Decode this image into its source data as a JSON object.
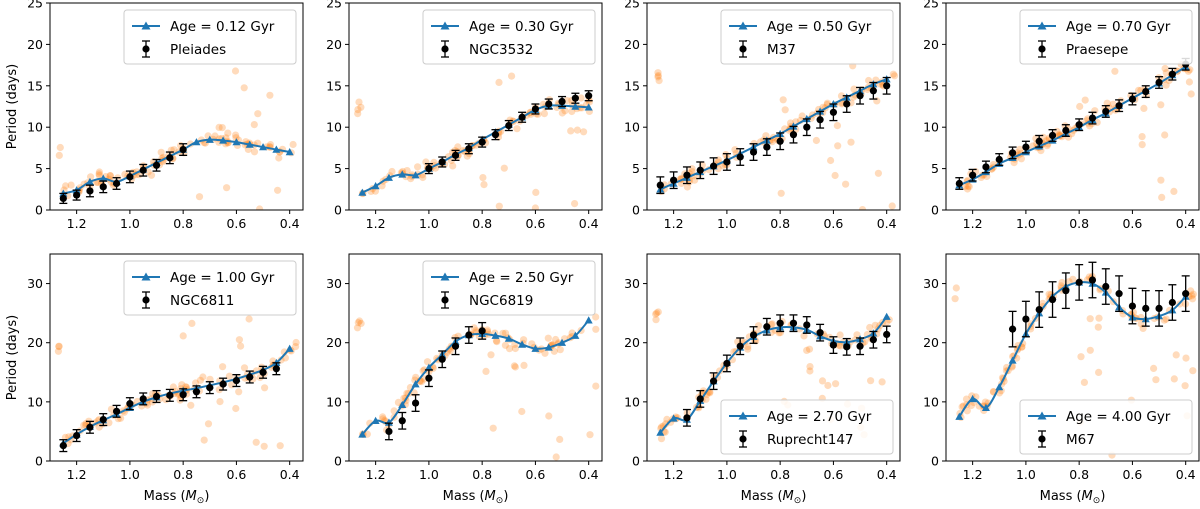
{
  "figure": {
    "xlabel_prefix": "Mass (",
    "xlabel_symbol": "M",
    "xlabel_sub": "⊙",
    "xlabel_suffix": ")",
    "ylabel": "Period (days)",
    "colors": {
      "model": "#1f77b4",
      "observed": "#000000",
      "scatter": "#ff7f0e"
    }
  },
  "chart_data": [
    {
      "type": "line",
      "title": "",
      "xlim": [
        1.3,
        0.35
      ],
      "ylim": [
        0,
        25
      ],
      "xticks": [
        1.2,
        1.0,
        0.8,
        0.6,
        0.4
      ],
      "yticks": [
        0,
        5,
        10,
        15,
        20,
        25
      ],
      "model_label": "Age =  0.12 Gyr",
      "cluster_label": "Pleiades",
      "legend_loc": "upper-right",
      "model": {
        "x": [
          1.25,
          1.2,
          1.15,
          1.1,
          1.05,
          1.0,
          0.95,
          0.9,
          0.85,
          0.8,
          0.75,
          0.7,
          0.65,
          0.6,
          0.55,
          0.5,
          0.45,
          0.4
        ],
        "y": [
          2.0,
          2.4,
          3.4,
          3.8,
          3.4,
          4.1,
          4.9,
          5.7,
          6.5,
          7.3,
          8.2,
          8.5,
          8.4,
          8.2,
          7.9,
          7.6,
          7.3,
          7.0
        ]
      },
      "observed": {
        "x": [
          1.25,
          1.2,
          1.15,
          1.1,
          1.05,
          1.0,
          0.95,
          0.9,
          0.85,
          0.8
        ],
        "y": [
          1.4,
          1.8,
          2.3,
          2.8,
          3.2,
          4.0,
          4.8,
          5.4,
          6.3,
          7.3
        ],
        "err": [
          0.6,
          0.6,
          0.7,
          0.7,
          0.7,
          0.7,
          0.7,
          0.7,
          0.7,
          0.7
        ]
      }
    },
    {
      "type": "line",
      "title": "",
      "xlim": [
        1.3,
        0.35
      ],
      "ylim": [
        0,
        25
      ],
      "xticks": [
        1.2,
        1.0,
        0.8,
        0.6,
        0.4
      ],
      "yticks": [
        0,
        5,
        10,
        15,
        20,
        25
      ],
      "model_label": "Age =  0.30 Gyr",
      "cluster_label": "NGC3532",
      "legend_loc": "upper-right",
      "model": {
        "x": [
          1.25,
          1.2,
          1.15,
          1.1,
          1.05,
          1.0,
          0.95,
          0.9,
          0.85,
          0.8,
          0.75,
          0.7,
          0.65,
          0.6,
          0.55,
          0.5,
          0.45,
          0.4
        ],
        "y": [
          2.1,
          2.9,
          3.9,
          4.3,
          4.2,
          5.0,
          5.8,
          6.7,
          7.5,
          8.5,
          9.4,
          10.3,
          11.2,
          12.1,
          12.6,
          12.6,
          12.5,
          12.4
        ]
      },
      "observed": {
        "x": [
          1.0,
          0.95,
          0.9,
          0.85,
          0.8,
          0.75,
          0.7,
          0.65,
          0.6,
          0.55,
          0.5,
          0.45,
          0.4
        ],
        "y": [
          5.0,
          5.8,
          6.6,
          7.4,
          8.2,
          9.1,
          10.2,
          11.2,
          12.2,
          12.8,
          13.1,
          13.5,
          13.8
        ],
        "err": [
          0.6,
          0.6,
          0.6,
          0.6,
          0.6,
          0.6,
          0.6,
          0.6,
          0.6,
          0.6,
          0.6,
          0.6,
          0.6
        ]
      }
    },
    {
      "type": "line",
      "title": "",
      "xlim": [
        1.3,
        0.35
      ],
      "ylim": [
        0,
        25
      ],
      "xticks": [
        1.2,
        1.0,
        0.8,
        0.6,
        0.4
      ],
      "yticks": [
        0,
        5,
        10,
        15,
        20,
        25
      ],
      "model_label": "Age =  0.50 Gyr",
      "cluster_label": "M37",
      "legend_loc": "upper-right",
      "model": {
        "x": [
          1.25,
          1.2,
          1.15,
          1.1,
          1.05,
          1.0,
          0.95,
          0.9,
          0.85,
          0.8,
          0.75,
          0.7,
          0.65,
          0.6,
          0.55,
          0.5,
          0.45,
          0.4
        ],
        "y": [
          2.5,
          3.2,
          3.9,
          4.6,
          5.3,
          6.0,
          6.8,
          7.6,
          8.4,
          9.2,
          10.1,
          11.0,
          11.9,
          12.8,
          13.6,
          14.4,
          15.2,
          15.8
        ]
      },
      "observed": {
        "x": [
          1.25,
          1.2,
          1.15,
          1.1,
          1.05,
          1.0,
          0.95,
          0.9,
          0.85,
          0.8,
          0.75,
          0.7,
          0.65,
          0.6,
          0.55,
          0.5,
          0.45,
          0.4
        ],
        "y": [
          3.0,
          3.6,
          4.2,
          4.8,
          5.3,
          5.8,
          6.4,
          7.0,
          7.6,
          8.3,
          9.1,
          10.0,
          10.9,
          11.8,
          12.8,
          13.8,
          14.4,
          15.0
        ],
        "err": [
          1.0,
          1.0,
          1.0,
          1.0,
          1.0,
          1.0,
          1.0,
          1.0,
          1.0,
          1.0,
          1.0,
          1.0,
          1.0,
          1.0,
          1.0,
          1.0,
          1.0,
          1.0
        ]
      }
    },
    {
      "type": "line",
      "title": "",
      "xlim": [
        1.3,
        0.35
      ],
      "ylim": [
        0,
        25
      ],
      "xticks": [
        1.2,
        1.0,
        0.8,
        0.6,
        0.4
      ],
      "yticks": [
        0,
        5,
        10,
        15,
        20,
        25
      ],
      "model_label": "Age =  0.70 Gyr",
      "cluster_label": "Praesepe",
      "legend_loc": "upper-right",
      "model": {
        "x": [
          1.25,
          1.2,
          1.15,
          1.1,
          1.05,
          1.0,
          0.95,
          0.9,
          0.85,
          0.8,
          0.75,
          0.7,
          0.65,
          0.6,
          0.55,
          0.5,
          0.45,
          0.4
        ],
        "y": [
          3.0,
          3.7,
          4.6,
          5.6,
          6.3,
          7.0,
          7.7,
          8.4,
          9.2,
          10.0,
          10.9,
          11.7,
          12.6,
          13.5,
          14.4,
          15.3,
          16.3,
          17.3
        ]
      },
      "observed": {
        "x": [
          1.25,
          1.2,
          1.15,
          1.1,
          1.05,
          1.0,
          0.95,
          0.9,
          0.85,
          0.8,
          0.75,
          0.7,
          0.65,
          0.6,
          0.55,
          0.5,
          0.45,
          0.4
        ],
        "y": [
          3.2,
          4.2,
          5.2,
          6.1,
          6.9,
          7.6,
          8.3,
          9.0,
          9.6,
          10.3,
          11.1,
          11.9,
          12.6,
          13.4,
          14.3,
          15.4,
          16.4,
          17.6
        ],
        "err": [
          0.7,
          0.7,
          0.7,
          0.7,
          0.7,
          0.7,
          0.7,
          0.7,
          0.7,
          0.7,
          0.7,
          0.7,
          0.7,
          0.7,
          0.7,
          0.7,
          0.7,
          0.7
        ]
      }
    },
    {
      "type": "line",
      "title": "",
      "xlim": [
        1.3,
        0.35
      ],
      "ylim": [
        0,
        35
      ],
      "xticks": [
        1.2,
        1.0,
        0.8,
        0.6,
        0.4
      ],
      "yticks": [
        0,
        10,
        20,
        30
      ],
      "model_label": "Age =  1.00 Gyr",
      "cluster_label": "NGC6811",
      "legend_loc": "upper-right",
      "model": {
        "x": [
          1.25,
          1.2,
          1.15,
          1.1,
          1.05,
          1.0,
          0.95,
          0.9,
          0.85,
          0.8,
          0.75,
          0.7,
          0.65,
          0.6,
          0.55,
          0.5,
          0.45,
          0.4
        ],
        "y": [
          3.0,
          4.5,
          5.8,
          6.9,
          7.9,
          9.0,
          10.0,
          10.8,
          11.4,
          11.9,
          12.3,
          12.8,
          13.3,
          13.9,
          14.6,
          15.4,
          16.6,
          19.0
        ]
      },
      "observed": {
        "x": [
          1.25,
          1.2,
          1.15,
          1.1,
          1.05,
          1.0,
          0.95,
          0.9,
          0.85,
          0.8,
          0.75,
          0.7,
          0.65,
          0.6,
          0.55,
          0.5,
          0.45
        ],
        "y": [
          2.6,
          4.3,
          5.7,
          7.0,
          8.4,
          9.7,
          10.5,
          10.9,
          11.1,
          11.2,
          11.7,
          12.4,
          13.0,
          13.6,
          14.2,
          15.0,
          15.6
        ],
        "err": [
          1.0,
          1.0,
          1.0,
          1.0,
          1.0,
          1.0,
          1.0,
          1.0,
          1.0,
          1.0,
          1.0,
          1.0,
          1.0,
          1.0,
          1.0,
          1.0,
          1.0
        ]
      }
    },
    {
      "type": "line",
      "title": "",
      "xlim": [
        1.3,
        0.35
      ],
      "ylim": [
        0,
        35
      ],
      "xticks": [
        1.2,
        1.0,
        0.8,
        0.6,
        0.4
      ],
      "yticks": [
        0,
        10,
        20,
        30
      ],
      "model_label": "Age =  2.50 Gyr",
      "cluster_label": "NGC6819",
      "legend_loc": "upper-right",
      "model": {
        "x": [
          1.25,
          1.2,
          1.15,
          1.1,
          1.05,
          1.0,
          0.95,
          0.9,
          0.85,
          0.8,
          0.75,
          0.7,
          0.65,
          0.6,
          0.55,
          0.5,
          0.45,
          0.4
        ],
        "y": [
          4.5,
          6.8,
          6.5,
          9.5,
          13.0,
          15.8,
          18.0,
          20.2,
          21.3,
          21.5,
          21.2,
          20.7,
          19.7,
          19.0,
          19.2,
          20.0,
          21.2,
          23.8
        ]
      },
      "observed": {
        "x": [
          1.15,
          1.1,
          1.05,
          1.0,
          0.95,
          0.9,
          0.85,
          0.8
        ],
        "y": [
          5.0,
          6.8,
          9.8,
          14.0,
          17.2,
          19.4,
          21.3,
          22.0
        ],
        "err": [
          1.4,
          1.4,
          1.4,
          1.4,
          1.4,
          1.4,
          1.4,
          1.4
        ]
      }
    },
    {
      "type": "line",
      "title": "",
      "xlim": [
        1.3,
        0.35
      ],
      "ylim": [
        0,
        35
      ],
      "xticks": [
        1.2,
        1.0,
        0.8,
        0.6,
        0.4
      ],
      "yticks": [
        0,
        10,
        20,
        30
      ],
      "model_label": "Age =  2.70 Gyr",
      "cluster_label": "Ruprecht147",
      "legend_loc": "lower-right",
      "model": {
        "x": [
          1.25,
          1.2,
          1.15,
          1.1,
          1.05,
          1.0,
          0.95,
          0.9,
          0.85,
          0.8,
          0.75,
          0.7,
          0.65,
          0.6,
          0.55,
          0.5,
          0.45,
          0.4
        ],
        "y": [
          4.8,
          7.2,
          7.0,
          10.2,
          13.5,
          16.6,
          19.2,
          21.0,
          22.1,
          22.6,
          22.6,
          22.2,
          21.1,
          20.3,
          20.1,
          20.6,
          21.6,
          24.4
        ]
      },
      "observed": {
        "x": [
          1.15,
          1.1,
          1.05,
          1.0,
          0.95,
          0.9,
          0.85,
          0.8,
          0.75,
          0.7,
          0.65,
          0.6,
          0.55,
          0.5,
          0.45,
          0.4
        ],
        "y": [
          7.3,
          10.5,
          13.5,
          16.5,
          19.4,
          21.3,
          22.7,
          23.3,
          23.3,
          23.0,
          21.7,
          19.6,
          19.3,
          19.4,
          20.5,
          21.4
        ],
        "err": [
          1.4,
          1.4,
          1.4,
          1.4,
          1.4,
          1.4,
          1.4,
          1.4,
          1.4,
          1.4,
          1.4,
          1.4,
          1.4,
          1.4,
          1.4,
          1.4
        ]
      }
    },
    {
      "type": "line",
      "title": "",
      "xlim": [
        1.3,
        0.35
      ],
      "ylim": [
        0,
        35
      ],
      "xticks": [
        1.2,
        1.0,
        0.8,
        0.6,
        0.4
      ],
      "yticks": [
        0,
        10,
        20,
        30
      ],
      "model_label": "Age =  4.00 Gyr",
      "cluster_label": "M67",
      "legend_loc": "lower-right",
      "model": {
        "x": [
          1.25,
          1.2,
          1.15,
          1.1,
          1.05,
          1.0,
          0.95,
          0.9,
          0.85,
          0.8,
          0.75,
          0.7,
          0.65,
          0.6,
          0.55,
          0.5,
          0.45,
          0.4
        ],
        "y": [
          7.5,
          10.5,
          9.0,
          12.5,
          17.0,
          21.5,
          25.0,
          27.8,
          29.5,
          30.2,
          30.0,
          28.5,
          26.0,
          24.3,
          24.0,
          24.5,
          25.5,
          27.8
        ]
      },
      "observed": {
        "x": [
          1.05,
          1.0,
          0.95,
          0.9,
          0.85,
          0.8,
          0.75,
          0.7,
          0.65,
          0.6,
          0.55,
          0.5,
          0.45,
          0.4
        ],
        "y": [
          22.3,
          24.0,
          25.6,
          27.3,
          28.8,
          30.2,
          30.6,
          29.5,
          28.3,
          26.2,
          25.8,
          25.8,
          26.8,
          28.3
        ],
        "err": [
          3.0,
          3.0,
          3.0,
          3.0,
          3.0,
          3.0,
          3.0,
          3.0,
          3.0,
          3.0,
          3.0,
          3.0,
          3.0,
          3.0
        ]
      }
    }
  ]
}
